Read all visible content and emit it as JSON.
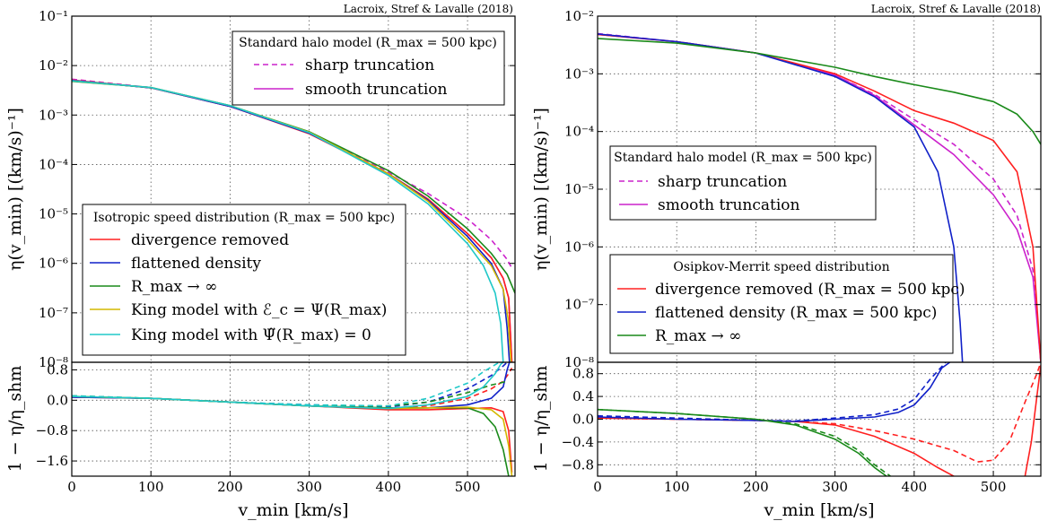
{
  "chart_data": [
    {
      "type": "line",
      "credit": "Lacroix, Stref & Lavalle (2018)",
      "ylabel": "η(v_min) [(km/s)⁻¹]",
      "xlabel": "",
      "yscale": "log",
      "xlim": [
        0,
        560
      ],
      "ylim": [
        1e-08,
        0.1
      ],
      "yticks": [
        "10⁻⁸",
        "10⁻⁷",
        "10⁻⁶",
        "10⁻⁵",
        "10⁻⁴",
        "10⁻³",
        "10⁻²",
        "10⁻¹"
      ],
      "xticks": [],
      "grid": true,
      "legends": [
        {
          "title": "Standard halo model (R_max = 500 kpc)",
          "placement": "top-right",
          "entries": [
            {
              "label": "sharp truncation",
              "color": "#cc22cc",
              "style": "dashed"
            },
            {
              "label": "smooth truncation",
              "color": "#cc22cc",
              "style": "solid"
            }
          ]
        },
        {
          "title": "Isotropic speed distribution (R_max = 500 kpc)",
          "placement": "lower-left",
          "entries": [
            {
              "label": "divergence removed",
              "color": "#ff2020",
              "style": "solid"
            },
            {
              "label": "flattened density",
              "color": "#1020c8",
              "style": "solid"
            },
            {
              "label": "R_max → ∞",
              "color": "#1a8a1a",
              "style": "solid"
            },
            {
              "label": "King model with ℰ_c = Ψ(R_max)",
              "color": "#d4b800",
              "style": "solid"
            },
            {
              "label": "King model with Ψ̃(R_max) = 0",
              "color": "#20c8c8",
              "style": "solid"
            }
          ]
        }
      ],
      "series": [
        {
          "color": "#cc22cc",
          "style": "dashed",
          "x": [
            0,
            100,
            200,
            300,
            400,
            450,
            500,
            530,
            550,
            556
          ],
          "y": [
            0.0053,
            0.0036,
            0.0015,
            0.00044,
            7e-05,
            2.6e-05,
            8e-06,
            3e-06,
            1.2e-06,
            8e-07
          ]
        },
        {
          "color": "#cc22cc",
          "style": "solid",
          "x": [
            0,
            100,
            200,
            300,
            400,
            450,
            500,
            530,
            545,
            552,
            556
          ],
          "y": [
            0.005,
            0.00355,
            0.0015,
            0.00043,
            6.5e-05,
            2e-05,
            4e-06,
            1.3e-06,
            5e-07,
            2e-07,
            1e-08
          ]
        },
        {
          "color": "#ff2020",
          "style": "solid",
          "x": [
            0,
            100,
            200,
            300,
            400,
            450,
            500,
            530,
            545,
            552,
            556
          ],
          "y": [
            0.0051,
            0.00355,
            0.0015,
            0.00042,
            6.5e-05,
            2e-05,
            4e-06,
            1.3e-06,
            5e-07,
            2e-07,
            1e-08
          ]
        },
        {
          "color": "#1020c8",
          "style": "solid",
          "x": [
            0,
            100,
            200,
            300,
            400,
            450,
            500,
            530,
            545,
            550,
            553
          ],
          "y": [
            0.005,
            0.00355,
            0.0015,
            0.00043,
            6.5e-05,
            1.9e-05,
            3.5e-06,
            1e-06,
            3e-07,
            5e-08,
            1e-08
          ]
        },
        {
          "color": "#1a8a1a",
          "style": "solid",
          "x": [
            0,
            100,
            200,
            300,
            400,
            450,
            500,
            530,
            550,
            560
          ],
          "y": [
            0.0048,
            0.0036,
            0.00155,
            0.00046,
            7.5e-05,
            2.3e-05,
            5e-06,
            1.6e-06,
            6e-07,
            2.5e-07
          ]
        },
        {
          "color": "#d4b800",
          "style": "solid",
          "x": [
            0,
            100,
            200,
            300,
            400,
            450,
            500,
            530,
            545,
            551,
            555
          ],
          "y": [
            0.0049,
            0.0036,
            0.00155,
            0.00045,
            6.5e-05,
            1.8e-05,
            3e-06,
            9e-07,
            3e-07,
            8e-08,
            1e-08
          ]
        },
        {
          "color": "#20c8c8",
          "style": "solid",
          "x": [
            0,
            100,
            200,
            300,
            400,
            450,
            500,
            520,
            535,
            542,
            545
          ],
          "y": [
            0.0049,
            0.0036,
            0.00155,
            0.00044,
            6e-05,
            1.6e-05,
            2.5e-06,
            9e-07,
            2.5e-07,
            6e-08,
            1e-08
          ]
        }
      ]
    },
    {
      "type": "line",
      "ylabel": "1 − η/η_shm",
      "xlabel": "v_min [km/s]",
      "xlim": [
        0,
        560
      ],
      "ylim": [
        -2.0,
        1.0
      ],
      "yticks": [
        "−1.6",
        "−0.8",
        "0.0",
        "0.8"
      ],
      "xticks": [
        "0",
        "100",
        "200",
        "300",
        "400",
        "500"
      ],
      "grid": true,
      "series": [
        {
          "color": "#ff2020",
          "style": "solid",
          "x": [
            0,
            100,
            200,
            300,
            400,
            450,
            500,
            530,
            545,
            552,
            556
          ],
          "y": [
            0.08,
            0.05,
            -0.05,
            -0.15,
            -0.25,
            -0.25,
            -0.22,
            -0.2,
            -0.3,
            -0.8,
            -1.9
          ]
        },
        {
          "color": "#ff2020",
          "style": "dashed",
          "x": [
            0,
            100,
            200,
            300,
            400,
            450,
            500,
            530,
            545,
            552,
            556
          ],
          "y": [
            0.1,
            0.05,
            -0.05,
            -0.15,
            -0.22,
            -0.15,
            0.05,
            0.3,
            0.5,
            0.7,
            0.85
          ]
        },
        {
          "color": "#1020c8",
          "style": "solid",
          "x": [
            0,
            100,
            200,
            300,
            400,
            450,
            500,
            530,
            545,
            550,
            553
          ],
          "y": [
            0.08,
            0.05,
            -0.05,
            -0.15,
            -0.22,
            -0.2,
            -0.12,
            0.05,
            0.35,
            0.8,
            1.0
          ]
        },
        {
          "color": "#1020c8",
          "style": "dashed",
          "x": [
            0,
            100,
            200,
            300,
            400,
            450,
            500,
            530,
            545,
            550
          ],
          "y": [
            0.1,
            0.05,
            -0.05,
            -0.12,
            -0.18,
            -0.05,
            0.3,
            0.65,
            0.9,
            1.0
          ]
        },
        {
          "color": "#1a8a1a",
          "style": "solid",
          "x": [
            0,
            100,
            200,
            300,
            400,
            450,
            500,
            520,
            535,
            545,
            552
          ],
          "y": [
            0.1,
            0.05,
            -0.05,
            -0.15,
            -0.2,
            -0.2,
            -0.2,
            -0.35,
            -0.7,
            -1.3,
            -2.0
          ]
        },
        {
          "color": "#1a8a1a",
          "style": "dashed",
          "x": [
            0,
            100,
            200,
            300,
            400,
            450,
            500,
            530,
            550
          ],
          "y": [
            0.12,
            0.05,
            -0.05,
            -0.13,
            -0.15,
            -0.05,
            0.2,
            0.4,
            0.5
          ]
        },
        {
          "color": "#d4b800",
          "style": "solid",
          "x": [
            0,
            100,
            200,
            300,
            400,
            450,
            500,
            530,
            545,
            552,
            556
          ],
          "y": [
            0.1,
            0.05,
            -0.05,
            -0.15,
            -0.22,
            -0.2,
            -0.18,
            -0.25,
            -0.5,
            -1.2,
            -2.0
          ]
        },
        {
          "color": "#20c8c8",
          "style": "solid",
          "x": [
            0,
            100,
            200,
            300,
            400,
            450,
            500,
            520,
            535,
            542,
            545
          ],
          "y": [
            0.1,
            0.05,
            -0.05,
            -0.15,
            -0.22,
            -0.12,
            0.1,
            0.35,
            0.7,
            0.95,
            1.0
          ]
        },
        {
          "color": "#20c8c8",
          "style": "dashed",
          "x": [
            0,
            100,
            200,
            300,
            400,
            450,
            500,
            520,
            540
          ],
          "y": [
            0.12,
            0.05,
            -0.05,
            -0.12,
            -0.15,
            0.05,
            0.45,
            0.75,
            1.0
          ]
        }
      ]
    },
    {
      "type": "line",
      "credit": "Lacroix, Stref & Lavalle (2018)",
      "ylabel": "η(v_min) [(km/s)⁻¹]",
      "xlabel": "",
      "yscale": "log",
      "xlim": [
        0,
        560
      ],
      "ylim": [
        1e-08,
        0.01
      ],
      "yticks": [
        "10⁻⁸",
        "10⁻⁷",
        "10⁻⁶",
        "10⁻⁵",
        "10⁻⁴",
        "10⁻³",
        "10⁻²"
      ],
      "xticks": [],
      "grid": true,
      "legends": [
        {
          "title": "Standard halo model (R_max = 500 kpc)",
          "placement": "center-left",
          "entries": [
            {
              "label": "sharp truncation",
              "color": "#cc22cc",
              "style": "dashed"
            },
            {
              "label": "smooth truncation",
              "color": "#cc22cc",
              "style": "solid"
            }
          ]
        },
        {
          "title": "Osipkov-Merrit speed distribution",
          "placement": "lower-left",
          "entries": [
            {
              "label": "divergence removed (R_max = 500 kpc)",
              "color": "#ff2020",
              "style": "solid"
            },
            {
              "label": "flattened density (R_max = 500 kpc)",
              "color": "#1020c8",
              "style": "solid"
            },
            {
              "label": "R_max → ∞",
              "color": "#1a8a1a",
              "style": "solid"
            }
          ]
        }
      ],
      "series": [
        {
          "color": "#cc22cc",
          "style": "dashed",
          "x": [
            0,
            100,
            200,
            300,
            350,
            400,
            450,
            500,
            530,
            550,
            560
          ],
          "y": [
            0.005,
            0.0036,
            0.0023,
            0.00095,
            0.00044,
            0.00016,
            6e-05,
            1.5e-05,
            3.5e-06,
            4e-07,
            1e-08
          ]
        },
        {
          "color": "#cc22cc",
          "style": "solid",
          "x": [
            0,
            100,
            200,
            300,
            350,
            400,
            450,
            500,
            530,
            550,
            560
          ],
          "y": [
            0.0048,
            0.0036,
            0.0023,
            0.00095,
            0.00042,
            0.00013,
            4e-05,
            8e-06,
            2e-06,
            3e-07,
            1e-08
          ]
        },
        {
          "color": "#ff2020",
          "style": "solid",
          "x": [
            0,
            100,
            200,
            300,
            350,
            400,
            450,
            500,
            530,
            550,
            560
          ],
          "y": [
            0.0048,
            0.0036,
            0.0023,
            0.001,
            0.0005,
            0.00023,
            0.00014,
            7e-05,
            2e-05,
            1e-06,
            1e-08
          ]
        },
        {
          "color": "#1020c8",
          "style": "solid",
          "x": [
            0,
            100,
            200,
            300,
            350,
            400,
            430,
            450,
            458,
            461
          ],
          "y": [
            0.0049,
            0.0036,
            0.0023,
            0.0009,
            0.0004,
            0.00012,
            2e-05,
            1e-06,
            5e-08,
            1e-08
          ]
        },
        {
          "color": "#1a8a1a",
          "style": "solid",
          "x": [
            0,
            100,
            200,
            300,
            350,
            400,
            450,
            500,
            530,
            550,
            560
          ],
          "y": [
            0.0041,
            0.0034,
            0.0023,
            0.0013,
            0.0009,
            0.00065,
            0.00048,
            0.00033,
            0.0002,
            0.0001,
            6e-05
          ]
        }
      ]
    },
    {
      "type": "line",
      "ylabel": "1 − η/η_shm",
      "xlabel": "v_min [km/s]",
      "xlim": [
        0,
        560
      ],
      "ylim": [
        -1.0,
        1.0
      ],
      "yticks": [
        "−0.8",
        "−0.4",
        "0.0",
        "0.4",
        "0.8"
      ],
      "xticks": [
        "0",
        "100",
        "200",
        "300",
        "400",
        "500"
      ],
      "grid": true,
      "series": [
        {
          "color": "#ff2020",
          "style": "solid",
          "x": [
            0,
            100,
            200,
            250,
            300,
            350,
            400,
            430,
            450,
            470
          ],
          "y": [
            0.02,
            0.0,
            -0.02,
            -0.04,
            -0.1,
            -0.3,
            -0.6,
            -0.85,
            -1.0,
            -1.2
          ]
        },
        {
          "color": "#ff2020",
          "style": "dashed",
          "x": [
            0,
            100,
            200,
            250,
            300,
            350,
            400,
            450,
            480,
            500,
            520,
            540,
            555,
            560
          ],
          "y": [
            0.02,
            0.0,
            -0.02,
            -0.04,
            -0.08,
            -0.2,
            -0.35,
            -0.55,
            -0.75,
            -0.72,
            -0.4,
            0.3,
            0.8,
            1.0
          ]
        },
        {
          "color": "#ff2020",
          "style": "solid",
          "x": [
            540,
            548,
            555,
            560
          ],
          "y": [
            -1.0,
            -0.4,
            0.4,
            0.95
          ]
        },
        {
          "color": "#1020c8",
          "style": "solid",
          "x": [
            0,
            100,
            200,
            250,
            300,
            350,
            380,
            400,
            420,
            435,
            445
          ],
          "y": [
            0.04,
            0.0,
            -0.02,
            -0.04,
            0.0,
            0.04,
            0.12,
            0.25,
            0.55,
            0.9,
            1.0
          ]
        },
        {
          "color": "#1020c8",
          "style": "dashed",
          "x": [
            0,
            100,
            200,
            250,
            300,
            350,
            380,
            400,
            420,
            440
          ],
          "y": [
            0.06,
            0.02,
            -0.02,
            -0.03,
            0.02,
            0.08,
            0.18,
            0.35,
            0.7,
            1.0
          ]
        },
        {
          "color": "#1a8a1a",
          "style": "solid",
          "x": [
            0,
            100,
            200,
            250,
            300,
            330,
            350,
            365
          ],
          "y": [
            0.17,
            0.1,
            0.0,
            -0.1,
            -0.35,
            -0.6,
            -0.85,
            -1.0
          ]
        },
        {
          "color": "#1a8a1a",
          "style": "dashed",
          "x": [
            0,
            100,
            200,
            250,
            300,
            330,
            350,
            370
          ],
          "y": [
            0.17,
            0.1,
            0.0,
            -0.08,
            -0.3,
            -0.55,
            -0.8,
            -1.0
          ]
        }
      ]
    }
  ]
}
